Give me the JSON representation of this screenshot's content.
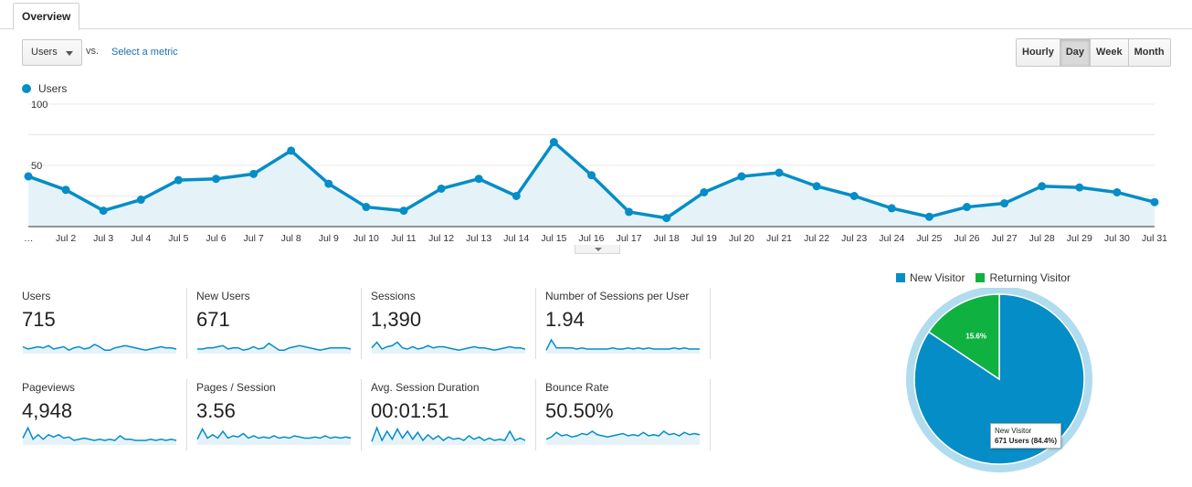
{
  "tabs": [
    {
      "label": "Overview",
      "active": true
    }
  ],
  "controls": {
    "metric_selected": "Users",
    "vs_label": "vs.",
    "select_metric_link": "Select a metric",
    "periods": [
      {
        "label": "Hourly",
        "active": false
      },
      {
        "label": "Day",
        "active": true
      },
      {
        "label": "Week",
        "active": false
      },
      {
        "label": "Month",
        "active": false
      }
    ]
  },
  "chart_data": {
    "type": "area",
    "series": [
      {
        "name": "Users",
        "values": [
          41,
          30,
          13,
          22,
          38,
          39,
          43,
          62,
          35,
          16,
          13,
          31,
          39,
          25,
          69,
          42,
          12,
          7,
          28,
          41,
          44,
          33,
          25,
          15,
          8,
          16,
          19,
          33,
          32,
          28,
          20
        ]
      }
    ],
    "categories": [
      "…",
      "Jul 2",
      "Jul 3",
      "Jul 4",
      "Jul 5",
      "Jul 6",
      "Jul 7",
      "Jul 8",
      "Jul 9",
      "Jul 10",
      "Jul 11",
      "Jul 12",
      "Jul 13",
      "Jul 14",
      "Jul 15",
      "Jul 16",
      "Jul 17",
      "Jul 18",
      "Jul 19",
      "Jul 20",
      "Jul 21",
      "Jul 22",
      "Jul 23",
      "Jul 24",
      "Jul 25",
      "Jul 26",
      "Jul 27",
      "Jul 28",
      "Jul 29",
      "Jul 30",
      "Jul 31"
    ],
    "ytick_labels": [
      "100",
      "50"
    ],
    "ylim": [
      0,
      100
    ],
    "grid": true,
    "color": "#058dc7"
  },
  "metrics": [
    {
      "label": "Users",
      "value": "715",
      "spark": [
        6,
        4,
        5,
        6,
        5,
        7,
        4,
        5,
        6,
        3,
        5,
        6,
        4,
        5,
        8,
        6,
        3,
        3,
        5,
        6,
        7,
        6,
        5,
        4,
        3,
        4,
        5,
        6,
        5,
        5,
        4
      ]
    },
    {
      "label": "New Users",
      "value": "671",
      "spark": [
        4,
        4,
        5,
        5,
        6,
        7,
        4,
        5,
        5,
        3,
        4,
        6,
        4,
        5,
        9,
        6,
        3,
        3,
        5,
        6,
        7,
        6,
        5,
        4,
        3,
        4,
        5,
        5,
        5,
        5,
        4
      ]
    },
    {
      "label": "Sessions",
      "value": "1,390",
      "spark": [
        5,
        10,
        4,
        6,
        7,
        10,
        5,
        4,
        6,
        4,
        5,
        7,
        5,
        6,
        6,
        5,
        4,
        3,
        4,
        5,
        6,
        5,
        5,
        4,
        3,
        4,
        5,
        6,
        5,
        5,
        4
      ]
    },
    {
      "label": "Number of Sessions per User",
      "value": "1.94",
      "spark": [
        3,
        12,
        5,
        5,
        5,
        5,
        4,
        5,
        4,
        4,
        4,
        4,
        4,
        5,
        4,
        4,
        5,
        4,
        5,
        4,
        5,
        4,
        4,
        4,
        4,
        5,
        4,
        5,
        4,
        4,
        4
      ]
    },
    {
      "label": "Pageviews",
      "value": "4,948",
      "spark": [
        6,
        15,
        5,
        9,
        5,
        9,
        7,
        9,
        6,
        7,
        4,
        5,
        6,
        5,
        4,
        5,
        4,
        5,
        4,
        8,
        5,
        5,
        4,
        4,
        4,
        5,
        4,
        5,
        4,
        5,
        4
      ]
    },
    {
      "label": "Pages / Session",
      "value": "3.56",
      "spark": [
        5,
        14,
        6,
        9,
        6,
        12,
        6,
        8,
        7,
        10,
        6,
        8,
        6,
        7,
        6,
        8,
        6,
        7,
        6,
        8,
        7,
        6,
        6,
        7,
        6,
        8,
        6,
        7,
        6,
        7,
        6
      ]
    },
    {
      "label": "Avg. Session Duration",
      "value": "00:01:51",
      "spark": [
        3,
        15,
        4,
        12,
        5,
        14,
        6,
        12,
        5,
        11,
        4,
        9,
        5,
        8,
        4,
        7,
        5,
        6,
        4,
        8,
        5,
        7,
        4,
        6,
        4,
        5,
        4,
        12,
        4,
        6,
        4
      ]
    },
    {
      "label": "Bounce Rate",
      "value": "50.50%",
      "spark": [
        5,
        7,
        11,
        8,
        9,
        7,
        8,
        10,
        9,
        12,
        9,
        8,
        7,
        8,
        9,
        10,
        8,
        9,
        8,
        11,
        8,
        9,
        8,
        12,
        9,
        10,
        8,
        11,
        9,
        10,
        9
      ]
    }
  ],
  "pie": {
    "legend": [
      {
        "label": "New Visitor",
        "color": "#058dc7"
      },
      {
        "label": "Returning Visitor",
        "color": "#0fb140"
      }
    ],
    "slices": [
      {
        "label": "New Visitor",
        "value": 84.4,
        "color": "#058dc7"
      },
      {
        "label": "Returning Visitor",
        "value": 15.6,
        "color": "#0fb140"
      }
    ],
    "slice_label_returning": "15.6%",
    "tooltip": {
      "title": "New Visitor",
      "value": "671 Users (84.4%)"
    }
  }
}
